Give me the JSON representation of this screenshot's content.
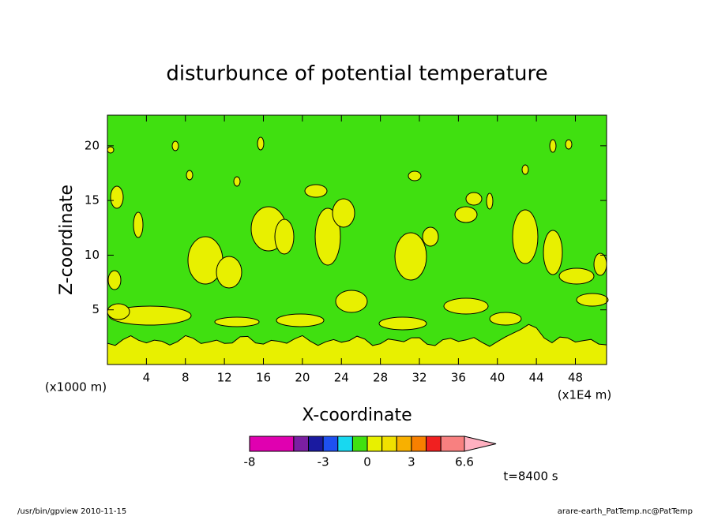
{
  "chart_data": {
    "type": "contour",
    "title": "disturbunce of potential temperature",
    "x_label": "X-coordinate",
    "y_label": "Z-coordinate",
    "x_unit_label": "(x1E4 m)",
    "y_unit_label": "(x1000 m)",
    "xlim": [
      0,
      51.2
    ],
    "xticks": [
      4,
      8,
      12,
      16,
      20,
      24,
      28,
      32,
      36,
      40,
      44,
      48
    ],
    "ylim": [
      0,
      22.8
    ],
    "yticks": [
      5,
      10,
      15,
      20
    ],
    "colorbar": {
      "levels": [
        -8,
        -5,
        -4,
        -3,
        -2,
        -1,
        0,
        1,
        2,
        3,
        4,
        5,
        6.6
      ],
      "colors": [
        "#e000b0",
        "#7b1fa2",
        "#1a1aa0",
        "#1e50f0",
        "#18d8f0",
        "#40e010",
        "#e8f000",
        "#f0e000",
        "#f8b000",
        "#f88000",
        "#f02020",
        "#f88080"
      ],
      "over_color": "#ffb0c0",
      "ticks": [
        -8,
        -3,
        0,
        3,
        6.6
      ]
    },
    "annotation": "t=8400 s",
    "footer_left": "/usr/bin/gpview   2010-11-15",
    "footer_right": "arare-earth_PatTemp.nc@PatTemp"
  }
}
